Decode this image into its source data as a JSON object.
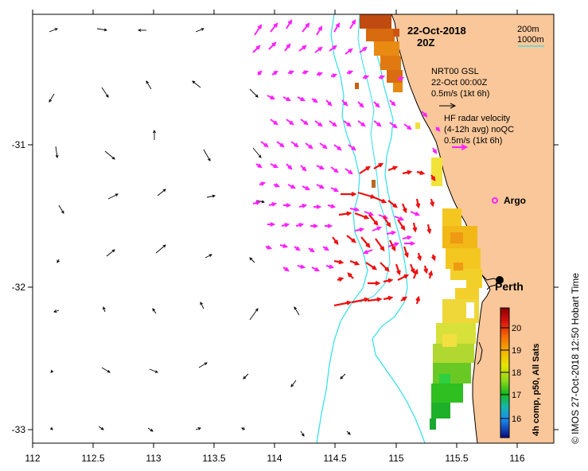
{
  "map": {
    "lon_range": [
      112,
      116.3
    ],
    "lat_range": [
      -33.1,
      -30.1
    ],
    "x_ticks": [
      "112",
      "112.5",
      "113",
      "113.5",
      "114",
      "114.5",
      "115",
      "115.5",
      "116"
    ],
    "y_ticks": [
      "-31",
      "-32",
      "-33"
    ],
    "colors": {
      "land": "#f9c79a",
      "ocean": "#ffffff",
      "isobath": "#2ee0e8",
      "radar_vector": "#ff22ff",
      "model_vector": "#000000",
      "strong_vector": "#ee1111"
    }
  },
  "labels": {
    "date": "22-Oct-2018",
    "time": "20Z",
    "isobath_200": "200m",
    "isobath_1000": "1000m",
    "model_title": "NRT00 GSL",
    "model_date": "22-Oct 00:00Z",
    "model_scale": "0.5m/s (1kt 6h)",
    "radar_title": "HF radar velocity",
    "radar_avg": "(4-12h avg) noQC",
    "radar_scale": "0.5m/s (1kt 6h)",
    "argo": "Argo",
    "city": "Perth",
    "colorbar_title": "4h comp, p50, All Sats",
    "credit": "© IMOS 27-Oct-2018 12:50 Hobart Time"
  },
  "colorbar": {
    "ticks": [
      "20",
      "19",
      "18",
      "17",
      "16"
    ],
    "range": [
      15.5,
      20.9
    ]
  }
}
